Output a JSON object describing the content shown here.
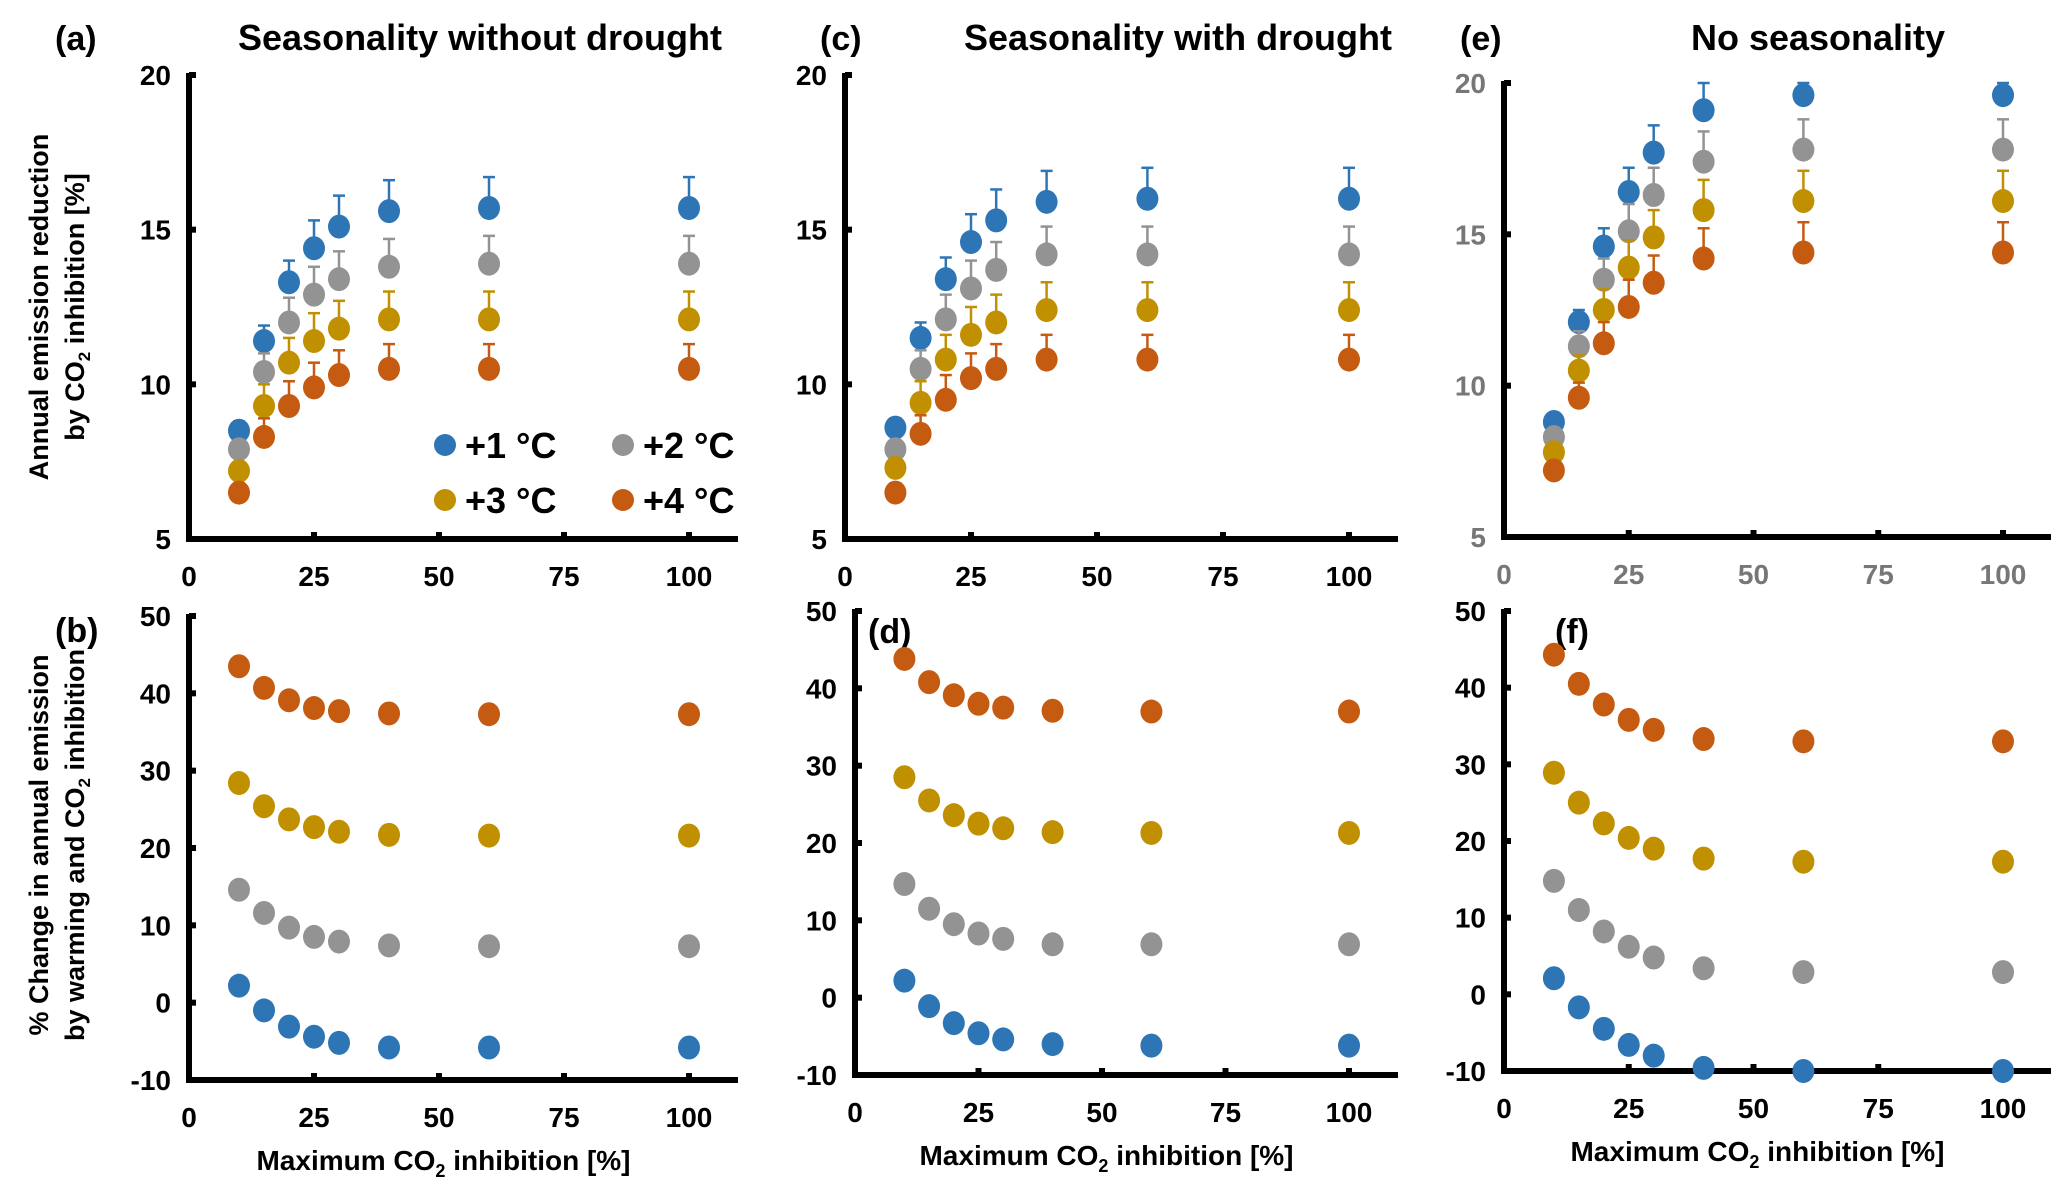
{
  "figure": {
    "legend": [
      {
        "label": "+1 °C",
        "color": "#2E75B6"
      },
      {
        "label": "+2 °C",
        "color": "#939393"
      },
      {
        "label": "+3 °C",
        "color": "#C09000"
      },
      {
        "label": "+4 °C",
        "color": "#C55A11"
      }
    ],
    "shared_xlabel": "Maximum CO2 inhibition [%]",
    "top_ylabel_line1": "Annual emission reduction",
    "top_ylabel_line2": "by CO2 inhibition [%]",
    "bottom_ylabel_line1": "% Change in annual emission",
    "bottom_ylabel_line2": "by warming and CO2 inhibition"
  },
  "chart_data": [
    {
      "id": "a",
      "panel_label": "(a)",
      "title": "Seasonality without drought",
      "type": "scatter",
      "x": [
        10,
        15,
        20,
        25,
        30,
        40,
        60,
        100
      ],
      "xticks": [
        0,
        25,
        50,
        75,
        100
      ],
      "xlim": [
        0,
        110
      ],
      "yticks": [
        5,
        10,
        15,
        20
      ],
      "ylim": [
        5,
        20
      ],
      "xlabel": "",
      "ylabel": "Annual emission reduction by CO2 inhibition [%]",
      "tick_color": "#000000",
      "legend": "bottom-right",
      "series": [
        {
          "name": "+1 °C",
          "color": "#2E75B6",
          "values": [
            8.5,
            11.4,
            13.3,
            14.4,
            15.1,
            15.6,
            15.7,
            15.7
          ],
          "err": [
            0.3,
            0.5,
            0.7,
            0.9,
            1.0,
            1.0,
            1.0,
            1.0
          ]
        },
        {
          "name": "+2 °C",
          "color": "#939393",
          "values": [
            7.9,
            10.4,
            12.0,
            12.9,
            13.4,
            13.8,
            13.9,
            13.9
          ],
          "err": [
            0.3,
            0.6,
            0.8,
            0.9,
            0.9,
            0.9,
            0.9,
            0.9
          ]
        },
        {
          "name": "+3 °C",
          "color": "#C09000",
          "values": [
            7.2,
            9.3,
            10.7,
            11.4,
            11.8,
            12.1,
            12.1,
            12.1
          ],
          "err": [
            0.3,
            0.7,
            0.8,
            0.9,
            0.9,
            0.9,
            0.9,
            0.9
          ]
        },
        {
          "name": "+4 °C",
          "color": "#C55A11",
          "values": [
            6.5,
            8.3,
            9.3,
            9.9,
            10.3,
            10.5,
            10.5,
            10.5
          ],
          "err": [
            0.3,
            0.6,
            0.8,
            0.8,
            0.8,
            0.8,
            0.8,
            0.8
          ]
        }
      ]
    },
    {
      "id": "b",
      "panel_label": "(b)",
      "title": "",
      "type": "scatter",
      "x": [
        10,
        15,
        20,
        25,
        30,
        40,
        60,
        100
      ],
      "xticks": [
        0,
        25,
        50,
        75,
        100
      ],
      "xlim": [
        0,
        110
      ],
      "yticks": [
        -10,
        0,
        10,
        20,
        30,
        40,
        50
      ],
      "ylim": [
        -10,
        50
      ],
      "xlabel": "Maximum CO2 inhibition [%]",
      "ylabel": "% Change in annual emission by warming and CO2 inhibition",
      "tick_color": "#000000",
      "series": [
        {
          "name": "+1 °C",
          "color": "#2E75B6",
          "values": [
            2.2,
            -1.0,
            -3.1,
            -4.4,
            -5.2,
            -5.8,
            -5.8,
            -5.8
          ]
        },
        {
          "name": "+2 °C",
          "color": "#939393",
          "values": [
            14.6,
            11.6,
            9.7,
            8.5,
            7.9,
            7.4,
            7.3,
            7.3
          ]
        },
        {
          "name": "+3 °C",
          "color": "#C09000",
          "values": [
            28.4,
            25.4,
            23.7,
            22.7,
            22.1,
            21.7,
            21.6,
            21.6
          ]
        },
        {
          "name": "+4 °C",
          "color": "#C55A11",
          "values": [
            43.5,
            40.7,
            39.1,
            38.1,
            37.7,
            37.4,
            37.3,
            37.3
          ]
        }
      ]
    },
    {
      "id": "c",
      "panel_label": "(c)",
      "title": "Seasonality with drought",
      "type": "scatter",
      "x": [
        10,
        15,
        20,
        25,
        30,
        40,
        60,
        100
      ],
      "xticks": [
        0,
        25,
        50,
        75,
        100
      ],
      "xlim": [
        0,
        110
      ],
      "yticks": [
        5,
        10,
        15,
        20
      ],
      "ylim": [
        5,
        20
      ],
      "xlabel": "",
      "ylabel": "",
      "tick_color": "#000000",
      "series": [
        {
          "name": "+1 °C",
          "color": "#2E75B6",
          "values": [
            8.6,
            11.5,
            13.4,
            14.6,
            15.3,
            15.9,
            16.0,
            16.0
          ],
          "err": [
            0.3,
            0.5,
            0.7,
            0.9,
            1.0,
            1.0,
            1.0,
            1.0
          ]
        },
        {
          "name": "+2 °C",
          "color": "#939393",
          "values": [
            7.9,
            10.5,
            12.1,
            13.1,
            13.7,
            14.2,
            14.2,
            14.2
          ],
          "err": [
            0.3,
            0.6,
            0.8,
            0.9,
            0.9,
            0.9,
            0.9,
            0.9
          ]
        },
        {
          "name": "+3 °C",
          "color": "#C09000",
          "values": [
            7.3,
            9.4,
            10.8,
            11.6,
            12.0,
            12.4,
            12.4,
            12.4
          ],
          "err": [
            0.3,
            0.7,
            0.8,
            0.9,
            0.9,
            0.9,
            0.9,
            0.9
          ]
        },
        {
          "name": "+4 °C",
          "color": "#C55A11",
          "values": [
            6.5,
            8.4,
            9.5,
            10.2,
            10.5,
            10.8,
            10.8,
            10.8
          ],
          "err": [
            0.3,
            0.6,
            0.8,
            0.8,
            0.8,
            0.8,
            0.8,
            0.8
          ]
        }
      ]
    },
    {
      "id": "d",
      "panel_label": "(d)",
      "title": "",
      "type": "scatter",
      "x": [
        10,
        15,
        20,
        25,
        30,
        40,
        60,
        100
      ],
      "xticks": [
        0,
        25,
        50,
        75,
        100
      ],
      "xlim": [
        0,
        110
      ],
      "yticks": [
        -10,
        0,
        10,
        20,
        30,
        40,
        50
      ],
      "ylim": [
        -10,
        50
      ],
      "xlabel": "Maximum CO2 inhibition [%]",
      "ylabel": "",
      "tick_color": "#000000",
      "series": [
        {
          "name": "+1 °C",
          "color": "#2E75B6",
          "values": [
            2.2,
            -1.1,
            -3.3,
            -4.6,
            -5.4,
            -6.0,
            -6.2,
            -6.2
          ]
        },
        {
          "name": "+2 °C",
          "color": "#939393",
          "values": [
            14.7,
            11.5,
            9.5,
            8.3,
            7.6,
            6.9,
            6.9,
            6.9
          ]
        },
        {
          "name": "+3 °C",
          "color": "#C09000",
          "values": [
            28.5,
            25.5,
            23.6,
            22.5,
            21.9,
            21.4,
            21.3,
            21.3
          ]
        },
        {
          "name": "+4 °C",
          "color": "#C55A11",
          "values": [
            43.8,
            40.8,
            39.1,
            38.0,
            37.5,
            37.1,
            37.0,
            37.0
          ]
        }
      ]
    },
    {
      "id": "e",
      "panel_label": "(e)",
      "title": "No seasonality",
      "type": "scatter",
      "x": [
        10,
        15,
        20,
        25,
        30,
        40,
        60,
        100
      ],
      "xticks": [
        0,
        25,
        50,
        75,
        100
      ],
      "xlim": [
        0,
        110
      ],
      "yticks": [
        5,
        10,
        15,
        20
      ],
      "ylim": [
        5,
        20
      ],
      "xlabel": "",
      "ylabel": "",
      "tick_color": "#777777",
      "series": [
        {
          "name": "+1 °C",
          "color": "#2E75B6",
          "values": [
            8.8,
            12.1,
            14.6,
            16.4,
            17.7,
            19.1,
            19.6,
            19.6
          ],
          "err": [
            0,
            0.4,
            0.6,
            0.8,
            0.9,
            1.0,
            0.4,
            0.4
          ]
        },
        {
          "name": "+2 °C",
          "color": "#939393",
          "values": [
            8.3,
            11.3,
            13.5,
            15.1,
            16.3,
            17.4,
            17.8,
            17.8
          ],
          "err": [
            0,
            0.5,
            0.7,
            0.9,
            0.9,
            1.0,
            1.0,
            1.0
          ]
        },
        {
          "name": "+3 °C",
          "color": "#C09000",
          "values": [
            7.8,
            10.5,
            12.5,
            13.9,
            14.9,
            15.8,
            16.1,
            16.1
          ],
          "err": [
            0,
            0.5,
            0.7,
            0.9,
            0.9,
            1.0,
            1.0,
            1.0
          ]
        },
        {
          "name": "+4 °C",
          "color": "#C55A11",
          "values": [
            7.2,
            9.6,
            11.4,
            12.6,
            13.4,
            14.2,
            14.4,
            14.4
          ],
          "err": [
            0,
            0.5,
            0.7,
            0.9,
            0.9,
            1.0,
            1.0,
            1.0
          ]
        }
      ]
    },
    {
      "id": "f",
      "panel_label": "(f)",
      "title": "",
      "type": "scatter",
      "x": [
        10,
        15,
        20,
        25,
        30,
        40,
        60,
        100
      ],
      "xticks": [
        0,
        25,
        50,
        75,
        100
      ],
      "xlim": [
        0,
        110
      ],
      "yticks": [
        -10,
        0,
        10,
        20,
        30,
        40,
        50
      ],
      "ylim": [
        -10,
        50
      ],
      "xlabel": "Maximum CO2 inhibition [%]",
      "ylabel": "",
      "tick_color": "#000000",
      "series": [
        {
          "name": "+1 °C",
          "color": "#2E75B6",
          "values": [
            2.1,
            -1.7,
            -4.5,
            -6.6,
            -8.0,
            -9.6,
            -10.0,
            -10.0
          ]
        },
        {
          "name": "+2 °C",
          "color": "#939393",
          "values": [
            14.8,
            11.0,
            8.2,
            6.2,
            4.8,
            3.4,
            2.9,
            2.9
          ]
        },
        {
          "name": "+3 °C",
          "color": "#C09000",
          "values": [
            28.9,
            25.0,
            22.3,
            20.4,
            19.0,
            17.7,
            17.3,
            17.3
          ]
        },
        {
          "name": "+4 °C",
          "color": "#C55A11",
          "values": [
            44.3,
            40.5,
            37.8,
            35.8,
            34.5,
            33.3,
            33.0,
            33.0
          ]
        }
      ]
    }
  ]
}
